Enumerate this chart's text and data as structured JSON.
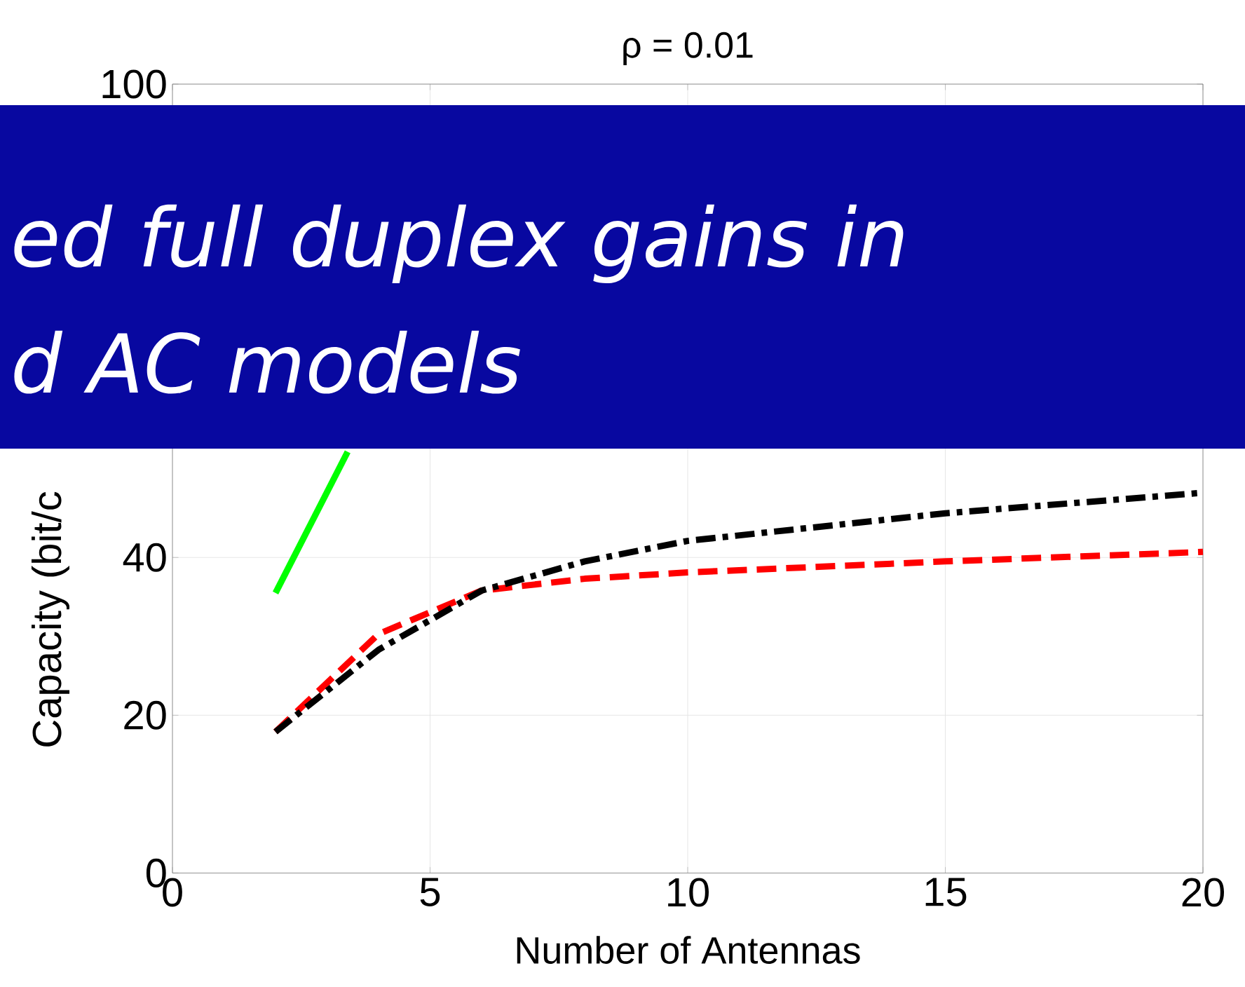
{
  "chart_data": {
    "type": "line",
    "title": "ρ = 0.01",
    "xlabel": "Number of Antennas",
    "ylabel": "Capacity (bit/c",
    "annotations": [
      "ed full duplex gains in",
      "d AC models"
    ],
    "xlim": [
      0,
      20
    ],
    "xticks": [
      0,
      5,
      10,
      15,
      20
    ],
    "ylim": [
      0,
      100
    ],
    "yticks": [
      0,
      20,
      40,
      100
    ],
    "grid": true,
    "series": [
      {
        "color": "#00ff00",
        "line_style": "solid",
        "x": [
          2,
          3.4
        ],
        "values": [
          35.5,
          53.4
        ]
      },
      {
        "color": "#ff0000",
        "line_style": "dashed",
        "x": [
          2,
          4,
          6,
          8,
          10,
          15,
          20
        ],
        "values": [
          17.9,
          30.3,
          35.8,
          37.3,
          38.1,
          39.5,
          40.7
        ]
      },
      {
        "color": "#000000",
        "line_style": "dashdot",
        "x": [
          2,
          4,
          6,
          8,
          10,
          15,
          20
        ],
        "values": [
          17.9,
          28.3,
          35.8,
          39.5,
          42.1,
          45.6,
          48.2
        ]
      }
    ]
  }
}
